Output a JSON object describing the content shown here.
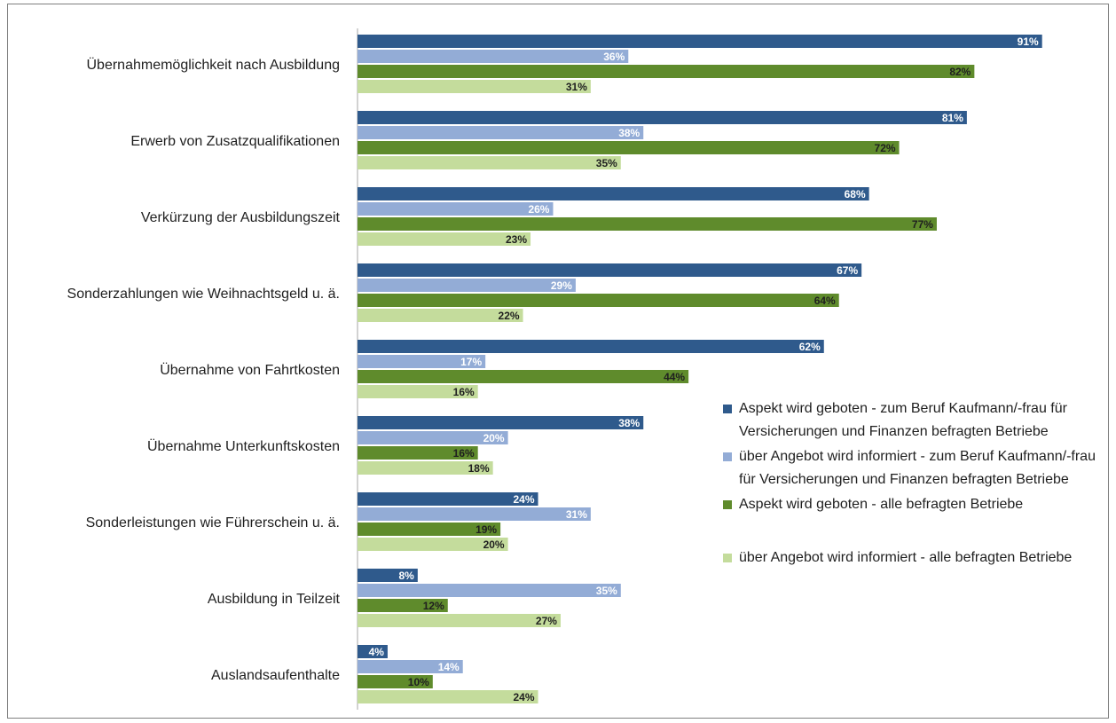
{
  "chart_data": {
    "type": "bar",
    "orientation": "horizontal",
    "title": "",
    "xlabel": "",
    "ylabel": "",
    "xlim": [
      0,
      100
    ],
    "grid": false,
    "legend_position": "right",
    "categories": [
      "Übernahmemöglichkeit nach Ausbildung",
      "Erwerb von Zusatzqualifikationen",
      "Verkürzung der Ausbildungszeit",
      "Sonderzahlungen wie Weihnachtsgeld u. ä.",
      "Übernahme von Fahrtkosten",
      "Übernahme Unterkunftskosten",
      "Sonderleistungen wie Führerschein u. ä.",
      "Ausbildung in Teilzeit",
      "Auslandsaufenthalte"
    ],
    "series": [
      {
        "name": "Aspekt wird geboten -  zum Beruf Kaufmann/-frau für Versicherungen und Finanzen befragten Betriebe",
        "color": "#2f5a8c",
        "label_color": "#ffffff",
        "values": [
          91,
          81,
          68,
          67,
          62,
          38,
          24,
          8,
          4
        ]
      },
      {
        "name": "über Angebot wird informiert - zum Beruf Kaufmann/-frau für Versicherungen und Finanzen befragten Betriebe",
        "color": "#93acd6",
        "label_color": "#ffffff",
        "values": [
          36,
          38,
          26,
          29,
          17,
          20,
          31,
          35,
          14
        ]
      },
      {
        "name": "Aspekt wird geboten - alle befragten Betriebe",
        "color": "#5f8b2c",
        "label_color": "#1f1f1f",
        "values": [
          82,
          72,
          77,
          64,
          44,
          16,
          19,
          12,
          10
        ]
      },
      {
        "name": "über Angebot wird informiert - alle befragten Betriebe",
        "color": "#c4dc9c",
        "label_color": "#1f1f1f",
        "values": [
          31,
          35,
          23,
          22,
          16,
          18,
          20,
          27,
          24
        ]
      }
    ],
    "value_suffix": "%",
    "axis_color": "#a6a6a6"
  }
}
